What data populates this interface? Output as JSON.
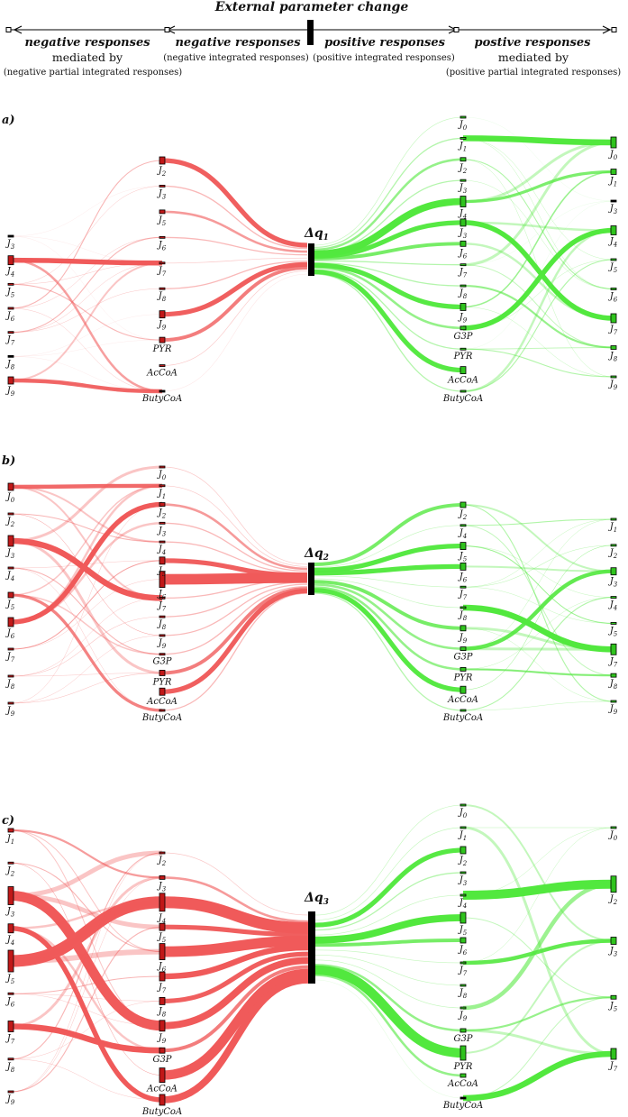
{
  "header": {
    "title": "External parameter change",
    "left_outer_title": "negative responses",
    "left_outer_sub1": "mediated by",
    "left_outer_sub2": "(negative partial integrated responses)",
    "left_inner_title": "negative responses",
    "left_inner_sub": "(negative integrated responses)",
    "right_inner_title": "positive responses",
    "right_inner_sub": "(positive integrated responses)",
    "right_outer_title": "postive responses",
    "right_outer_sub1": "mediated by",
    "right_outer_sub2": "(positive partial integrated responses)"
  },
  "colors": {
    "negative": "#f05a5a",
    "positive": "#52e83e",
    "node": "#111111"
  },
  "panels": [
    {
      "label": "a)",
      "hub_label": "Δq",
      "hub_sub": "1",
      "neg_outer": [
        {
          "id": "J3",
          "w": 0
        },
        {
          "id": "J4",
          "w": 5
        },
        {
          "id": "J5",
          "w": 1
        },
        {
          "id": "J6",
          "w": 1
        },
        {
          "id": "J7",
          "w": 1
        },
        {
          "id": "J8",
          "w": 0
        },
        {
          "id": "J9",
          "w": 4
        }
      ],
      "neg_inner": [
        {
          "id": "J2",
          "w": 4
        },
        {
          "id": "J3",
          "w": 1
        },
        {
          "id": "J5",
          "w": 2
        },
        {
          "id": "J6",
          "w": 1
        },
        {
          "id": "J7",
          "w": 0.5
        },
        {
          "id": "J8",
          "w": 1
        },
        {
          "id": "J9",
          "w": 4
        },
        {
          "id": "PYR",
          "w": 3
        },
        {
          "id": "AcCoA",
          "w": 0.5
        },
        {
          "id": "ButyCoA",
          "w": 0
        }
      ],
      "pos_inner": [
        {
          "id": "J0",
          "w": 0.5
        },
        {
          "id": "J1",
          "w": 1
        },
        {
          "id": "J2",
          "w": 2
        },
        {
          "id": "J3",
          "w": 1
        },
        {
          "id": "J4",
          "w": 6
        },
        {
          "id": "J3",
          "w": 4
        },
        {
          "id": "J6",
          "w": 3
        },
        {
          "id": "J7",
          "w": 1
        },
        {
          "id": "J8",
          "w": 1
        },
        {
          "id": "J9",
          "w": 4
        },
        {
          "id": "G3P",
          "w": 2
        },
        {
          "id": "PYR",
          "w": 1
        },
        {
          "id": "AcCoA",
          "w": 4
        },
        {
          "id": "ButyCoA",
          "w": 1
        }
      ],
      "pos_outer": [
        {
          "id": "J0",
          "w": 6
        },
        {
          "id": "J1",
          "w": 3
        },
        {
          "id": "J3",
          "w": 0
        },
        {
          "id": "J4",
          "w": 5
        },
        {
          "id": "J5",
          "w": 1
        },
        {
          "id": "J6",
          "w": 1
        },
        {
          "id": "J7",
          "w": 5
        },
        {
          "id": "J8",
          "w": 2
        },
        {
          "id": "J9",
          "w": 1
        }
      ]
    },
    {
      "label": "b)",
      "hub_label": "Δq",
      "hub_sub": "2",
      "neg_outer": [
        {
          "id": "J0",
          "w": 4
        },
        {
          "id": "J2",
          "w": 1
        },
        {
          "id": "J3",
          "w": 6
        },
        {
          "id": "J4",
          "w": 1
        },
        {
          "id": "J5",
          "w": 3
        },
        {
          "id": "J6",
          "w": 5
        },
        {
          "id": "J7",
          "w": 1
        },
        {
          "id": "J8",
          "w": 0.5
        },
        {
          "id": "J9",
          "w": 0.5
        }
      ],
      "neg_inner": [
        {
          "id": "J0",
          "w": 0.5
        },
        {
          "id": "J1",
          "w": 0.5
        },
        {
          "id": "J2",
          "w": 2
        },
        {
          "id": "J3",
          "w": 1
        },
        {
          "id": "J4",
          "w": 1
        },
        {
          "id": "J5",
          "w": 4
        },
        {
          "id": "J6",
          "w": 9
        },
        {
          "id": "J7",
          "w": 1
        },
        {
          "id": "J8",
          "w": 1
        },
        {
          "id": "J9",
          "w": 1
        },
        {
          "id": "G3P",
          "w": 1
        },
        {
          "id": "PYR",
          "w": 3
        },
        {
          "id": "AcCoA",
          "w": 4
        },
        {
          "id": "ButyCoA",
          "w": 1
        }
      ],
      "pos_inner": [
        {
          "id": "J2",
          "w": 3
        },
        {
          "id": "J4",
          "w": 0.5
        },
        {
          "id": "J5",
          "w": 4
        },
        {
          "id": "J6",
          "w": 4
        },
        {
          "id": "J7",
          "w": 0.5
        },
        {
          "id": "J8",
          "w": 0.5
        },
        {
          "id": "J9",
          "w": 3
        },
        {
          "id": "G3P",
          "w": 2
        },
        {
          "id": "PYR",
          "w": 2
        },
        {
          "id": "AcCoA",
          "w": 4
        },
        {
          "id": "ButyCoA",
          "w": 1
        }
      ],
      "pos_outer": [
        {
          "id": "J1",
          "w": 1
        },
        {
          "id": "J2",
          "w": 0.5
        },
        {
          "id": "J3",
          "w": 4
        },
        {
          "id": "J4",
          "w": 1
        },
        {
          "id": "J5",
          "w": 1
        },
        {
          "id": "J7",
          "w": 6
        },
        {
          "id": "J8",
          "w": 2
        },
        {
          "id": "J9",
          "w": 1
        }
      ]
    },
    {
      "label": "c)",
      "hub_label": "Δq",
      "hub_sub": "3",
      "neg_outer": [
        {
          "id": "J1",
          "w": 2
        },
        {
          "id": "J2",
          "w": 1
        },
        {
          "id": "J3",
          "w": 10
        },
        {
          "id": "J4",
          "w": 5
        },
        {
          "id": "J5",
          "w": 12
        },
        {
          "id": "J6",
          "w": 1
        },
        {
          "id": "J7",
          "w": 6
        },
        {
          "id": "J8",
          "w": 1
        },
        {
          "id": "J9",
          "w": 1
        }
      ],
      "neg_inner": [
        {
          "id": "J2",
          "w": 0.5
        },
        {
          "id": "J3",
          "w": 2
        },
        {
          "id": "J4",
          "w": 10
        },
        {
          "id": "J5",
          "w": 4
        },
        {
          "id": "J6",
          "w": 9
        },
        {
          "id": "J7",
          "w": 5
        },
        {
          "id": "J8",
          "w": 4
        },
        {
          "id": "J9",
          "w": 6
        },
        {
          "id": "G3P",
          "w": 3
        },
        {
          "id": "AcCoA",
          "w": 8
        },
        {
          "id": "ButyCoA",
          "w": 6
        }
      ],
      "pos_inner": [
        {
          "id": "J0",
          "w": 0.5
        },
        {
          "id": "J1",
          "w": 0.5
        },
        {
          "id": "J2",
          "w": 4
        },
        {
          "id": "J3",
          "w": 1
        },
        {
          "id": "J4",
          "w": 0.5
        },
        {
          "id": "J5",
          "w": 6
        },
        {
          "id": "J6",
          "w": 3
        },
        {
          "id": "J7",
          "w": 0.5
        },
        {
          "id": "J8",
          "w": 0.5
        },
        {
          "id": "J9",
          "w": 0.5
        },
        {
          "id": "G3P",
          "w": 2
        },
        {
          "id": "PYR",
          "w": 8
        },
        {
          "id": "AcCoA",
          "w": 2
        },
        {
          "id": "ButyCoA",
          "w": 0
        }
      ],
      "pos_outer": [
        {
          "id": "J0",
          "w": 0.5
        },
        {
          "id": "J2",
          "w": 9
        },
        {
          "id": "J3",
          "w": 4
        },
        {
          "id": "J5",
          "w": 2
        },
        {
          "id": "J7",
          "w": 6
        }
      ]
    }
  ]
}
